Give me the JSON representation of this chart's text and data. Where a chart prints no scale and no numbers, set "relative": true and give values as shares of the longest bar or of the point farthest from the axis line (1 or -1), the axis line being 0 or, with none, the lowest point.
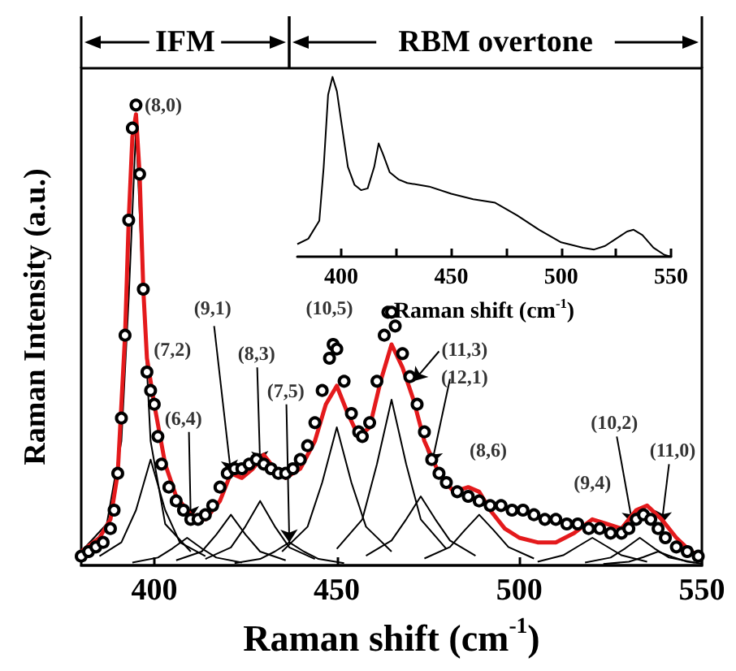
{
  "chart_data": [
    {
      "type": "line",
      "xlabel": "Raman shift (cm$^{-1}$)",
      "ylabel": "Raman Intensity (a.u.)",
      "relative": true,
      "xlim": [
        380,
        550
      ],
      "xticks": [
        400,
        450,
        500,
        550
      ],
      "tick_labels": "x",
      "grid": false,
      "annotations": [
        "IFM",
        "RBM overtone",
        {
          "text": "(8,0)",
          "x": 395,
          "y": 1.0
        },
        {
          "text": "(7,2)",
          "x": 399,
          "y": 0.4
        },
        {
          "text": "(6,4)",
          "x": 410,
          "y": 0.1
        },
        {
          "text": "(9,1)",
          "x": 421,
          "y": 0.2
        },
        {
          "text": "(8,3)",
          "x": 429,
          "y": 0.22
        },
        {
          "text": "(7,5)",
          "x": 437,
          "y": 0.05
        },
        {
          "text": "(10,5)",
          "x": 450,
          "y": 0.47
        },
        {
          "text": "(11,3)",
          "x": 471,
          "y": 0.4
        },
        {
          "text": "(12,1)",
          "x": 476,
          "y": 0.22
        },
        {
          "text": "(8,6)",
          "x": 489,
          "y": 0.15
        },
        {
          "text": "(9,4)",
          "x": 520,
          "y": 0.1
        },
        {
          "text": "(10,2)",
          "x": 531,
          "y": 0.09
        },
        {
          "text": "(11,0)",
          "x": 539,
          "y": 0.09
        }
      ],
      "series": [
        {
          "type": "scatter",
          "marker": "circle",
          "color": "#000000",
          "x": [
            380,
            382,
            384,
            386,
            388,
            389,
            390,
            391,
            392,
            393,
            394,
            395,
            396,
            397,
            398,
            399,
            400,
            401,
            402,
            404,
            406,
            408,
            410,
            412,
            414,
            416,
            418,
            420,
            422,
            424,
            426,
            428,
            430,
            432,
            434,
            436,
            438,
            440,
            442,
            444,
            446,
            448,
            449,
            450,
            452,
            454,
            456,
            457,
            459,
            461,
            463,
            464,
            465,
            466,
            468,
            470,
            472,
            474,
            476,
            478,
            480,
            483,
            486,
            489,
            492,
            495,
            498,
            501,
            504,
            507,
            510,
            513,
            516,
            519,
            522,
            525,
            528,
            530,
            532,
            534,
            536,
            538,
            540,
            543,
            546,
            549
          ],
          "values": [
            0.02,
            0.03,
            0.04,
            0.05,
            0.08,
            0.12,
            0.2,
            0.32,
            0.5,
            0.75,
            0.95,
            1.0,
            0.85,
            0.6,
            0.42,
            0.38,
            0.35,
            0.28,
            0.22,
            0.17,
            0.14,
            0.12,
            0.1,
            0.1,
            0.11,
            0.13,
            0.17,
            0.2,
            0.21,
            0.21,
            0.22,
            0.23,
            0.22,
            0.21,
            0.2,
            0.2,
            0.21,
            0.23,
            0.26,
            0.31,
            0.38,
            0.45,
            0.48,
            0.47,
            0.4,
            0.33,
            0.29,
            0.28,
            0.31,
            0.4,
            0.5,
            0.55,
            0.55,
            0.52,
            0.46,
            0.41,
            0.35,
            0.29,
            0.23,
            0.2,
            0.18,
            0.16,
            0.15,
            0.14,
            0.13,
            0.13,
            0.12,
            0.12,
            0.11,
            0.1,
            0.1,
            0.09,
            0.09,
            0.08,
            0.08,
            0.07,
            0.07,
            0.08,
            0.1,
            0.11,
            0.1,
            0.08,
            0.06,
            0.04,
            0.03,
            0.02
          ]
        },
        {
          "color": "#e41a1c",
          "x": [
            380,
            385,
            388,
            390,
            392,
            393,
            394,
            395,
            396,
            397,
            398,
            400,
            403,
            406,
            410,
            414,
            418,
            421,
            424,
            427,
            430,
            433,
            436,
            440,
            444,
            447,
            450,
            453,
            456,
            459,
            462,
            465,
            468,
            471,
            474,
            478,
            482,
            486,
            489,
            492,
            496,
            500,
            505,
            510,
            515,
            520,
            524,
            528,
            532,
            535,
            539,
            543,
            547,
            550
          ],
          "values": [
            0.03,
            0.06,
            0.1,
            0.2,
            0.5,
            0.75,
            0.93,
            0.98,
            0.85,
            0.6,
            0.45,
            0.35,
            0.22,
            0.15,
            0.11,
            0.1,
            0.14,
            0.2,
            0.19,
            0.21,
            0.24,
            0.21,
            0.19,
            0.21,
            0.27,
            0.35,
            0.39,
            0.33,
            0.28,
            0.3,
            0.4,
            0.48,
            0.43,
            0.36,
            0.27,
            0.2,
            0.16,
            0.17,
            0.16,
            0.12,
            0.08,
            0.06,
            0.05,
            0.05,
            0.07,
            0.1,
            0.09,
            0.08,
            0.12,
            0.13,
            0.1,
            0.06,
            0.03,
            0.02
          ]
        },
        {
          "type": "line",
          "color": "#000000",
          "x": [
            380,
            387,
            391,
            393,
            395,
            397,
            399,
            403,
            410
          ],
          "values": [
            0.03,
            0.09,
            0.27,
            0.58,
            0.95,
            0.58,
            0.27,
            0.09,
            0.03
          ]
        },
        {
          "type": "line",
          "color": "#000000",
          "x": [
            385,
            391,
            395,
            399,
            403,
            407,
            414
          ],
          "values": [
            0.02,
            0.05,
            0.12,
            0.23,
            0.12,
            0.05,
            0.02
          ]
        },
        {
          "type": "line",
          "color": "#000000",
          "x": [
            394,
            401,
            405,
            409,
            413,
            417,
            424
          ],
          "values": [
            0.006,
            0.017,
            0.037,
            0.06,
            0.037,
            0.017,
            0.006
          ]
        },
        {
          "type": "line",
          "color": "#000000",
          "x": [
            406,
            413,
            417,
            421,
            425,
            429,
            436
          ],
          "values": [
            0.011,
            0.03,
            0.067,
            0.11,
            0.067,
            0.03,
            0.011
          ]
        },
        {
          "type": "line",
          "color": "#000000",
          "x": [
            414,
            421,
            425,
            429,
            433,
            437,
            444
          ],
          "values": [
            0.014,
            0.039,
            0.085,
            0.14,
            0.085,
            0.039,
            0.014
          ]
        },
        {
          "type": "line",
          "color": "#000000",
          "x": [
            422,
            429,
            433,
            437,
            441,
            445,
            452
          ],
          "values": [
            0.005,
            0.014,
            0.03,
            0.05,
            0.03,
            0.014,
            0.005
          ]
        },
        {
          "type": "line",
          "color": "#000000",
          "x": [
            435,
            442,
            446,
            450,
            454,
            458,
            465
          ],
          "values": [
            0.03,
            0.084,
            0.18,
            0.3,
            0.18,
            0.084,
            0.03
          ]
        },
        {
          "type": "line",
          "color": "#000000",
          "x": [
            450,
            457,
            461,
            465,
            469,
            473,
            480
          ],
          "values": [
            0.036,
            0.1,
            0.22,
            0.36,
            0.22,
            0.1,
            0.036
          ]
        },
        {
          "type": "line",
          "color": "#000000",
          "x": [
            458,
            465,
            469,
            473,
            477,
            481,
            488
          ],
          "values": [
            0.021,
            0.054,
            0.1,
            0.15,
            0.1,
            0.054,
            0.021
          ]
        },
        {
          "type": "line",
          "color": "#000000",
          "x": [
            474,
            481,
            485,
            489,
            493,
            497,
            504
          ],
          "values": [
            0.015,
            0.04,
            0.076,
            0.11,
            0.076,
            0.04,
            0.015
          ]
        },
        {
          "type": "line",
          "color": "#000000",
          "x": [
            505,
            512,
            516,
            520,
            524,
            528,
            535
          ],
          "values": [
            0.008,
            0.022,
            0.041,
            0.06,
            0.041,
            0.022,
            0.008
          ]
        },
        {
          "type": "line",
          "color": "#000000",
          "x": [
            518,
            525,
            529,
            533,
            537,
            541,
            548
          ],
          "values": [
            0.006,
            0.017,
            0.037,
            0.06,
            0.037,
            0.017,
            0.006
          ]
        },
        {
          "type": "line",
          "color": "#000000",
          "x": [
            523,
            530,
            534,
            538,
            542,
            546,
            550
          ],
          "values": [
            0.003,
            0.008,
            0.018,
            0.03,
            0.018,
            0.008,
            0.004
          ]
        }
      ]
    },
    {
      "type": "line",
      "xlabel": "Raman shift (cm$^{-1}$)",
      "relative": true,
      "xlim": [
        380,
        550
      ],
      "xticks": [
        400,
        {
          "value": 425,
          "label": null
        },
        450,
        {
          "value": 475,
          "label": null
        },
        500,
        {
          "value": 525,
          "label": null
        },
        550
      ],
      "tick_labels": "x",
      "grid": false,
      "series": [
        {
          "color": "#000000",
          "x": [
            380,
            385,
            390,
            392,
            394,
            396,
            398,
            400,
            403,
            406,
            409,
            412,
            415,
            417,
            419,
            422,
            426,
            430,
            440,
            450,
            460,
            470,
            480,
            490,
            500,
            510,
            515,
            520,
            525,
            530,
            533,
            537,
            542,
            547,
            550
          ],
          "values": [
            0.07,
            0.1,
            0.2,
            0.5,
            0.9,
            1.0,
            0.92,
            0.75,
            0.5,
            0.4,
            0.37,
            0.38,
            0.5,
            0.63,
            0.57,
            0.47,
            0.43,
            0.41,
            0.39,
            0.35,
            0.32,
            0.3,
            0.23,
            0.15,
            0.08,
            0.05,
            0.04,
            0.06,
            0.1,
            0.14,
            0.15,
            0.12,
            0.05,
            0.01,
            0.0
          ]
        }
      ]
    }
  ]
}
